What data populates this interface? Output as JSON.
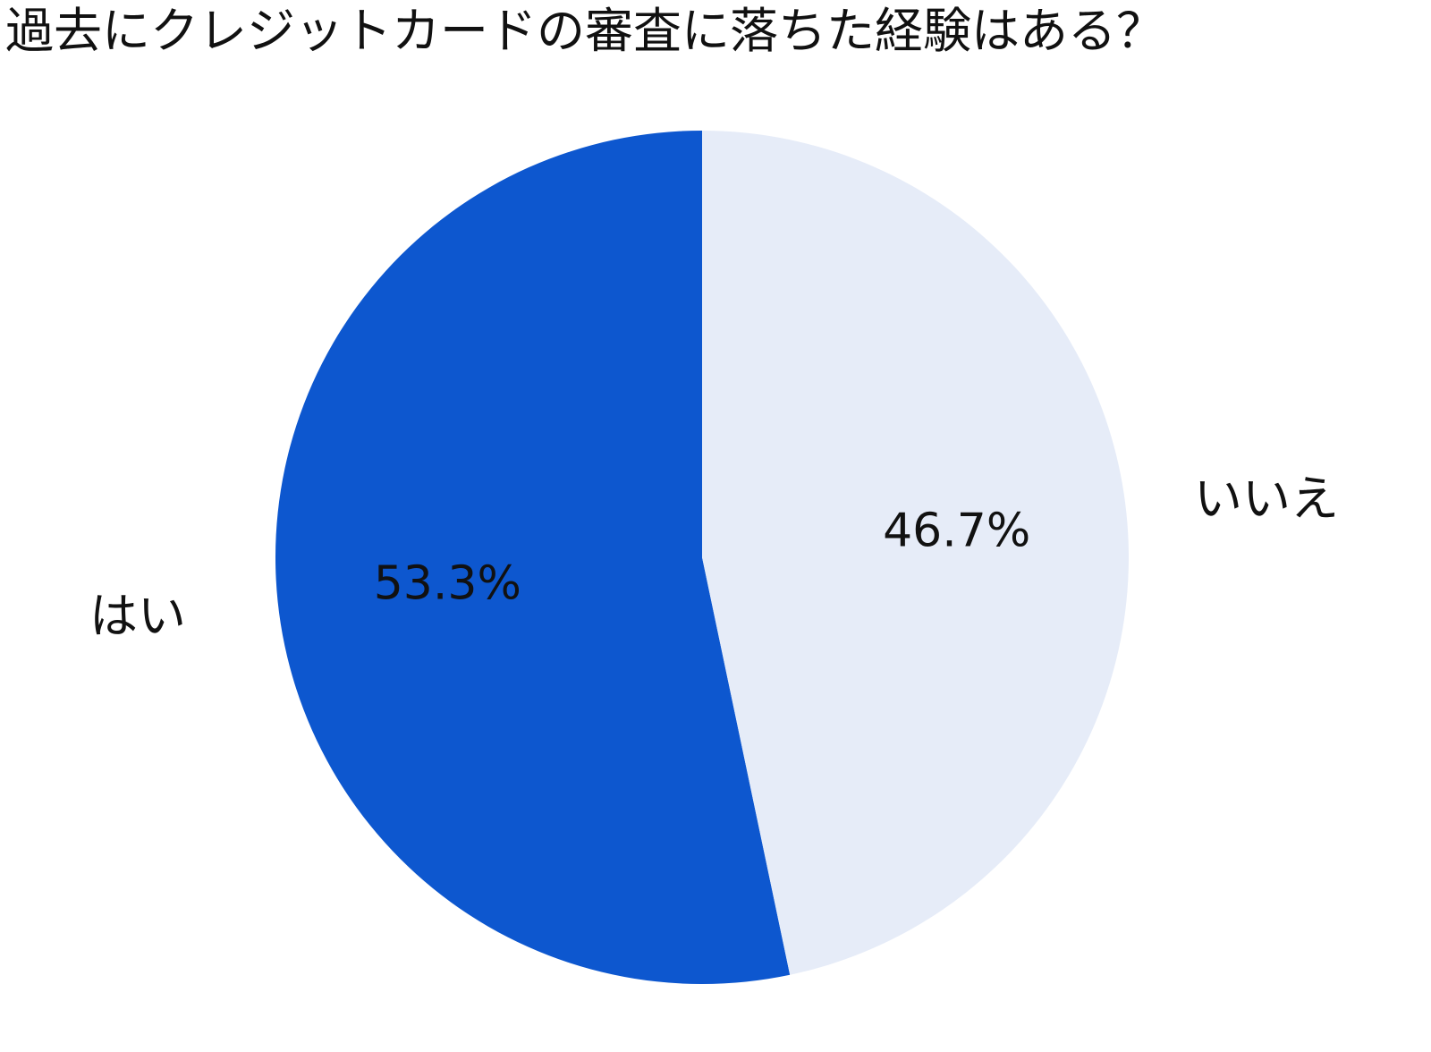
{
  "chart_data": {
    "type": "pie",
    "title": "過去にクレジットカードの審査に落ちた経験はある？",
    "categories": [
      "はい",
      "いいえ"
    ],
    "values": [
      53.3,
      46.7
    ],
    "value_labels": [
      "53.3%",
      "46.7%"
    ],
    "colors": [
      "#0d57cf",
      "#e6ecf8"
    ],
    "start_angle": "12 o'clock",
    "direction": "counterclockwise",
    "legend": "none"
  }
}
